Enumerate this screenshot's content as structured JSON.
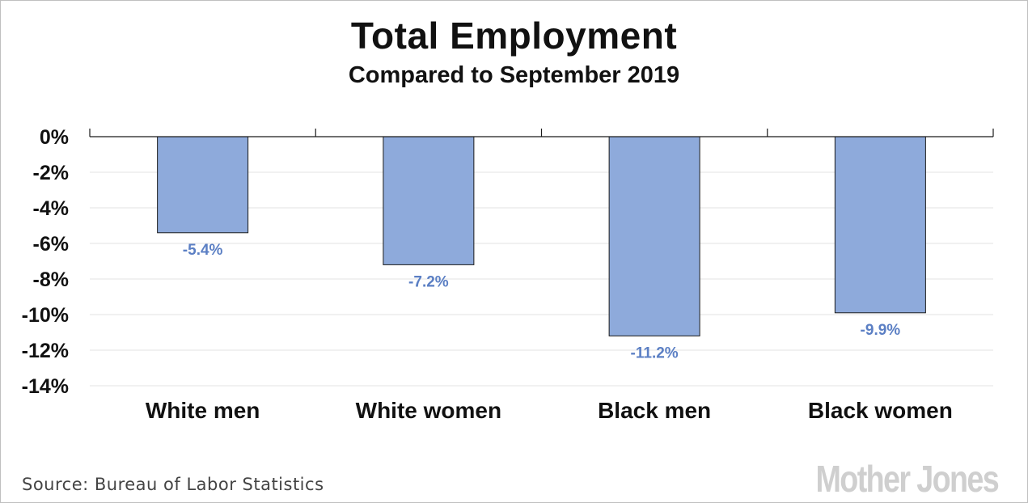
{
  "chart_data": {
    "type": "bar",
    "title": "Total Employment",
    "subtitle": "Compared to September 2019",
    "categories": [
      "White men",
      "White women",
      "Black men",
      "Black women"
    ],
    "values": [
      -5.4,
      -7.2,
      -11.2,
      -9.9
    ],
    "data_labels": [
      "-5.4%",
      "-7.2%",
      "-11.2%",
      "-9.9%"
    ],
    "ylim": [
      -14,
      0
    ],
    "yticks": [
      0,
      -2,
      -4,
      -6,
      -8,
      -10,
      -12,
      -14
    ],
    "ytick_labels": [
      "0%",
      "-2%",
      "-4%",
      "-6%",
      "-8%",
      "-10%",
      "-12%",
      "-14%"
    ],
    "xlabel": "",
    "ylabel": "",
    "grid": true,
    "bar_color": "#8eaadb",
    "label_color": "#5b7fc4"
  },
  "footer": {
    "source": "Source: Bureau of Labor Statistics",
    "logo": "Mother Jones"
  }
}
